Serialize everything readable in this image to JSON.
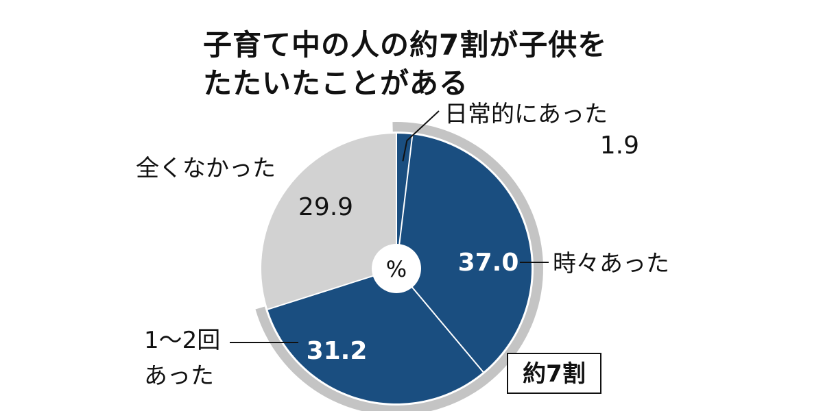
{
  "chart_data": {
    "type": "pie",
    "variant": "donut",
    "title": [
      "子育て中の人の約7割が子供を",
      "たたいたことがある"
    ],
    "center_label": "%",
    "slices": [
      {
        "label": "日常的にあった",
        "value": 1.9,
        "value_text": "1.9",
        "color": "#1a4e80",
        "group": "約7割"
      },
      {
        "label": "時々あった",
        "value": 37.0,
        "value_text": "37.0",
        "color": "#1a4e80",
        "group": "約7割"
      },
      {
        "label": "1～2回\nあった",
        "value": 31.2,
        "value_text": "31.2",
        "color": "#1a4e80",
        "group": "約7割"
      },
      {
        "label": "全くなかった",
        "value": 29.9,
        "value_text": "29.9",
        "color": "#d2d2d2"
      }
    ],
    "group_label": "約7割",
    "colors": {
      "highlight": "#1a4e80",
      "rest": "#d2d2d2",
      "ring": "#c4c4c4",
      "divider": "#ffffff"
    }
  }
}
